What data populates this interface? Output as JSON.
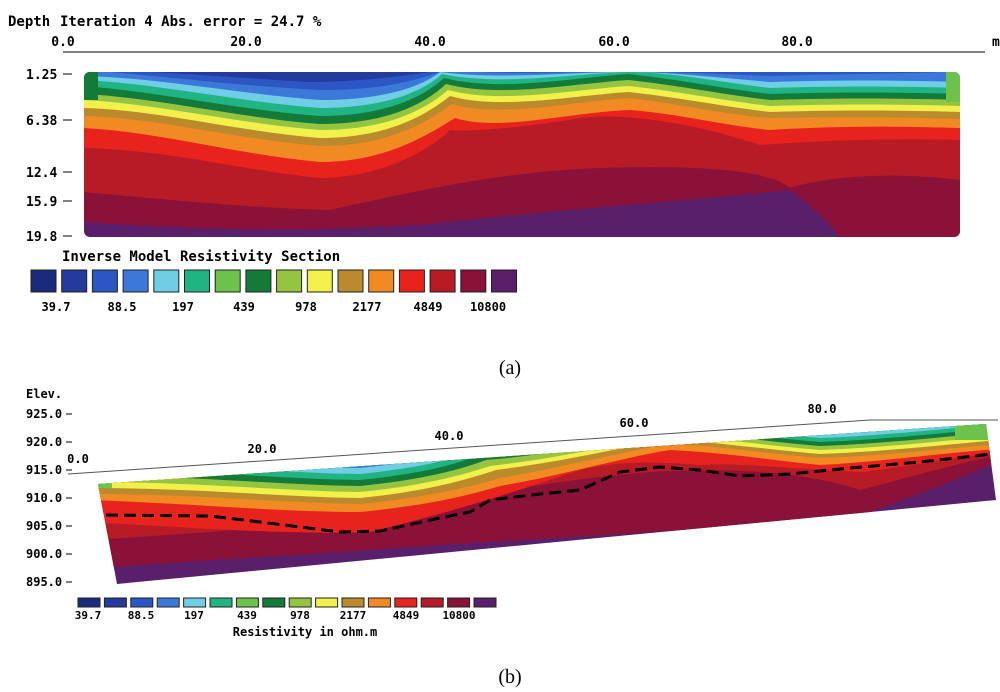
{
  "panel_a": {
    "header_depth": "Depth",
    "header_iteration": "Iteration 4 Abs. error = 24.7 %",
    "x_ticks": [
      "0.0",
      "20.0",
      "40.0",
      "60.0",
      "80.0"
    ],
    "x_unit": "m",
    "depth_ticks": [
      "1.25",
      "6.38",
      "12.4",
      "15.9",
      "19.8"
    ],
    "section_title": "Inverse Model Resistivity Section",
    "caption": "(a)"
  },
  "panel_b": {
    "elev_label": "Elev.",
    "elev_ticks": [
      "925.0",
      "920.0",
      "915.0",
      "910.0",
      "905.0",
      "900.0",
      "895.0"
    ],
    "x_ticks": [
      "0.0",
      "20.0",
      "40.0",
      "60.0",
      "80.0"
    ],
    "legend_unit": "Resistivity in ohm.m",
    "caption": "(b)"
  },
  "legend": {
    "colors": [
      "#1b2a7a",
      "#243b9c",
      "#2c56c4",
      "#3c78d8",
      "#70cde6",
      "#21b483",
      "#6cc24a",
      "#137a3a",
      "#95c540",
      "#f2f04a",
      "#bb8a2c",
      "#f18a22",
      "#e8231e",
      "#b71b26",
      "#8a1238",
      "#5a1f6b"
    ],
    "labels": [
      "39.7",
      "88.5",
      "197",
      "439",
      "978",
      "2177",
      "4849",
      "10800"
    ]
  },
  "chart_data": [
    {
      "type": "heatmap",
      "title": "Iteration 4 Abs. error = 24.7 %",
      "xlabel": "m",
      "ylabel": "Depth",
      "xlim": [
        0,
        95
      ],
      "ylim": [
        19.8,
        1.25
      ],
      "x_ticks": [
        0,
        20,
        40,
        60,
        80
      ],
      "y_ticks": [
        1.25,
        6.38,
        12.4,
        15.9,
        19.8
      ],
      "colorbar_values": [
        39.7,
        88.5,
        197,
        439,
        978,
        2177,
        4849,
        10800
      ],
      "legend_title": "Inverse Model Resistivity Section"
    },
    {
      "type": "heatmap",
      "ylabel": "Elev.",
      "xlim": [
        0,
        95
      ],
      "ylim": [
        893,
        925
      ],
      "x_ticks": [
        0,
        20,
        40,
        60,
        80
      ],
      "y_ticks": [
        925,
        920,
        915,
        910,
        905,
        900,
        895
      ],
      "colorbar_values": [
        39.7,
        88.5,
        197,
        439,
        978,
        2177,
        4849,
        10800
      ],
      "legend_title": "Resistivity in ohm.m"
    }
  ]
}
